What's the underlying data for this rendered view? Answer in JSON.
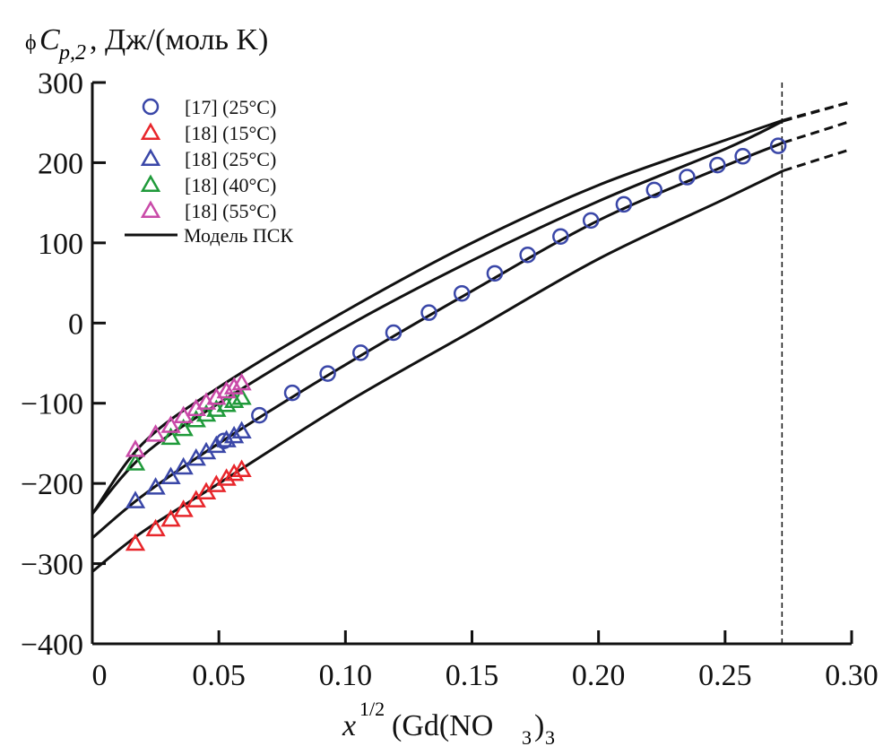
{
  "chart_data": {
    "type": "scatter",
    "title": "",
    "ylabel_prefix": "ϕ",
    "ylabel_main": "C",
    "ylabel_sub": "p,2",
    "ylabel_rest": ", Дж/(моль K)",
    "xlabel_main": "x",
    "xlabel_sup": "1/2",
    "xlabel_rest1": "(Gd(NO",
    "xlabel_sub": "3",
    "xlabel_rest2": ")",
    "xlabel_sub2": "3",
    "xlim": [
      0,
      0.3
    ],
    "ylim": [
      -400,
      300
    ],
    "xticks": [
      "0",
      "0.05",
      "0.10",
      "0.15",
      "0.20",
      "0.25",
      "0.30"
    ],
    "xtick_values": [
      0,
      0.05,
      0.1,
      0.15,
      0.2,
      0.25,
      0.3
    ],
    "yticks": [
      "300",
      "200",
      "100",
      "0",
      "−100",
      "−200",
      "−300",
      "−400"
    ],
    "ytick_values": [
      300,
      200,
      100,
      0,
      -100,
      -200,
      -300,
      -400
    ],
    "vline_x": 0.2725,
    "legend_position": "top-left",
    "series": [
      {
        "name": "[17] (25°C)",
        "marker": "circle",
        "color": "#3a47a8",
        "x": [
          0.052,
          0.066,
          0.079,
          0.093,
          0.106,
          0.119,
          0.133,
          0.146,
          0.159,
          0.172,
          0.185,
          0.197,
          0.21,
          0.222,
          0.235,
          0.247,
          0.257,
          0.271
        ],
        "y": [
          -147,
          -115,
          -87,
          -63,
          -37,
          -12,
          13,
          37,
          62,
          85,
          108,
          128,
          148,
          166,
          182,
          197,
          208,
          221
        ]
      },
      {
        "name": "[18] (15°C)",
        "marker": "triangle",
        "color": "#e8262b",
        "x": [
          0.017,
          0.025,
          0.031,
          0.036,
          0.041,
          0.045,
          0.049,
          0.053,
          0.056,
          0.059
        ],
        "y": [
          -275,
          -257,
          -245,
          -233,
          -221,
          -211,
          -202,
          -194,
          -188,
          -183
        ]
      },
      {
        "name": "[18] (25°C)",
        "marker": "triangle",
        "color": "#3a47a8",
        "x": [
          0.017,
          0.025,
          0.031,
          0.036,
          0.041,
          0.045,
          0.049,
          0.053,
          0.056,
          0.059
        ],
        "y": [
          -222,
          -205,
          -192,
          -180,
          -169,
          -161,
          -153,
          -146,
          -141,
          -135
        ]
      },
      {
        "name": "[18] (40°C)",
        "marker": "triangle",
        "color": "#1f9a3a",
        "x": [
          0.017,
          0.031,
          0.036,
          0.041,
          0.045,
          0.049,
          0.053,
          0.056,
          0.059
        ],
        "y": [
          -175,
          -143,
          -132,
          -121,
          -114,
          -108,
          -102,
          -97,
          -93
        ]
      },
      {
        "name": "[18] (55°C)",
        "marker": "triangle",
        "color": "#c94aa8",
        "x": [
          0.017,
          0.025,
          0.031,
          0.036,
          0.041,
          0.045,
          0.049,
          0.053,
          0.056,
          0.059
        ],
        "y": [
          -158,
          -139,
          -128,
          -116,
          -107,
          -99,
          -93,
          -85,
          -80,
          -75
        ]
      }
    ],
    "model_label": "Модель ПСК",
    "model_curves": [
      {
        "temp": "55°C",
        "x": [
          0,
          0.02,
          0.05,
          0.1,
          0.15,
          0.2,
          0.25,
          0.273
        ],
        "y": [
          -238,
          -150,
          -80,
          15,
          100,
          172,
          228,
          253
        ],
        "dashed_x": [
          0.273,
          0.3
        ],
        "dashed_y": [
          253,
          276
        ]
      },
      {
        "temp": "40°C",
        "x": [
          0,
          0.02,
          0.05,
          0.1,
          0.15,
          0.2,
          0.25,
          0.273
        ],
        "y": [
          -238,
          -165,
          -100,
          -5,
          78,
          152,
          217,
          252
        ],
        "dashed_x": [
          0.273,
          0.3
        ],
        "dashed_y": [
          252,
          276
        ]
      },
      {
        "temp": "25°C",
        "x": [
          0,
          0.02,
          0.05,
          0.1,
          0.15,
          0.2,
          0.25,
          0.273
        ],
        "y": [
          -268,
          -215,
          -150,
          -52,
          40,
          128,
          196,
          225
        ],
        "dashed_x": [
          0.273,
          0.3
        ],
        "dashed_y": [
          225,
          252
        ]
      },
      {
        "temp": "15°C",
        "x": [
          0,
          0.02,
          0.05,
          0.1,
          0.15,
          0.2,
          0.25,
          0.273
        ],
        "y": [
          -310,
          -260,
          -200,
          -100,
          -10,
          80,
          155,
          190
        ],
        "dashed_x": [
          0.273,
          0.3
        ],
        "dashed_y": [
          190,
          217
        ]
      }
    ]
  }
}
